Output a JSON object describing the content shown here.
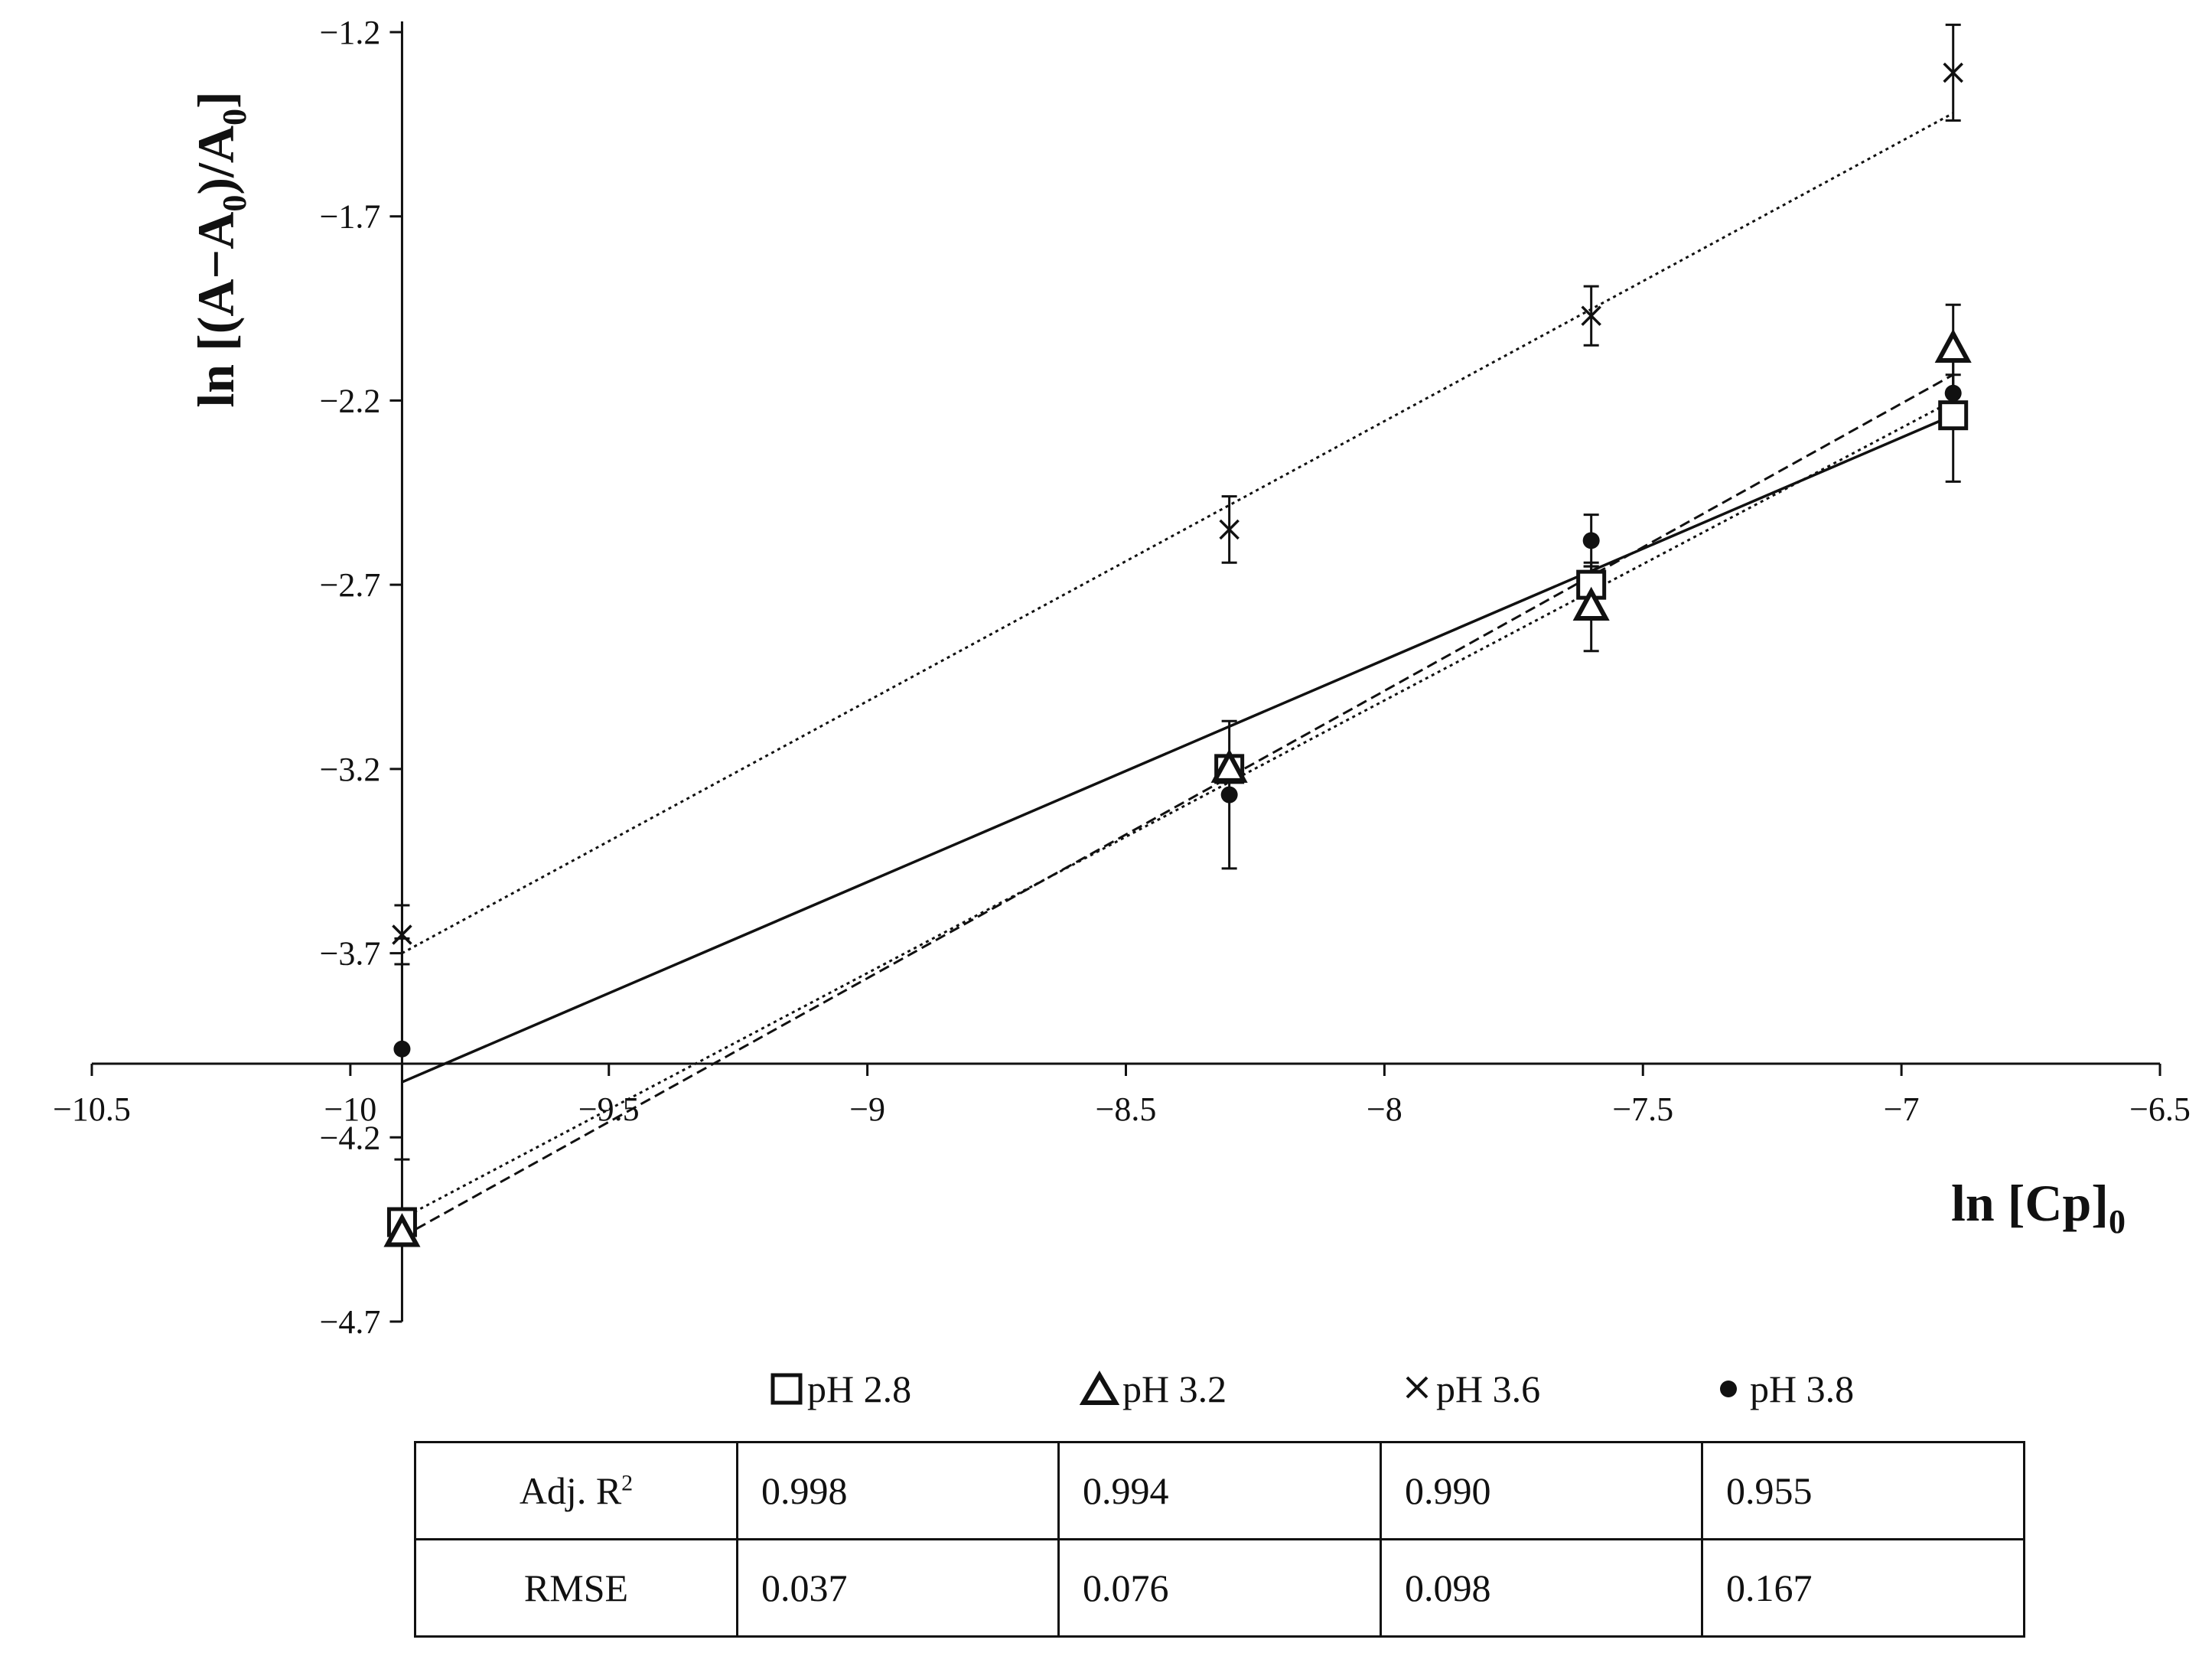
{
  "chart_data": {
    "type": "scatter",
    "xlabel": "ln [Cp]",
    "xlabel_sub": "0",
    "ylabel": {
      "pre": "ln [(A−A",
      "sub1": "0",
      "mid": ")/A",
      "sub2": "0",
      "post": "]"
    },
    "xlim": [
      -10.5,
      -6.5
    ],
    "ylim": [
      -4.7,
      -1.2
    ],
    "x_ticks": [
      -10.5,
      -10,
      -9.5,
      -9,
      -8.5,
      -8,
      -7.5,
      -7,
      -6.5
    ],
    "x_tick_labels": [
      "−10.5",
      "−10",
      "−9.5",
      "−9",
      "−8.5",
      "−8",
      "−7.5",
      "−7",
      "−6.5"
    ],
    "y_ticks": [
      -1.2,
      -1.7,
      -2.2,
      -2.7,
      -3.2,
      -3.7,
      -4.2,
      -4.7
    ],
    "y_tick_labels": [
      "−1.2",
      "−1.7",
      "−2.2",
      "−2.7",
      "−3.2",
      "−3.7",
      "−4.2",
      "−4.7"
    ],
    "axes_cross": {
      "x": -9.9,
      "y": -4.0
    },
    "grid": false,
    "legend_position": "bottom",
    "series": [
      {
        "name": "pH 2.8",
        "marker": "square",
        "line": "solid",
        "x": [
          -9.9,
          -8.3,
          -7.6,
          -6.9
        ],
        "y": [
          -4.43,
          -3.2,
          -2.7,
          -2.24
        ],
        "err": [
          0,
          0.03,
          0.05,
          0.18
        ],
        "fit": {
          "x": [
            -9.9,
            -6.9
          ],
          "y": [
            -4.05,
            -2.24
          ]
        }
      },
      {
        "name": "pH 3.2",
        "marker": "triangle",
        "line": "dashed",
        "x": [
          -9.9,
          -8.3,
          -7.6,
          -6.9
        ],
        "y": [
          -4.46,
          -3.2,
          -2.76,
          -2.06
        ],
        "err": [
          0,
          0.03,
          0.12,
          0.12
        ],
        "fit": {
          "x": [
            -9.9,
            -6.9
          ],
          "y": [
            -4.47,
            -2.13
          ]
        }
      },
      {
        "name": "pH 3.6",
        "marker": "cross",
        "line": "dotted",
        "x": [
          -9.9,
          -8.3,
          -7.6,
          -6.9
        ],
        "y": [
          -3.65,
          -2.55,
          -1.97,
          -1.31
        ],
        "err": [
          0.08,
          0.09,
          0.08,
          0.13
        ],
        "fit": {
          "x": [
            -9.9,
            -6.9
          ],
          "y": [
            -3.7,
            -1.42
          ]
        }
      },
      {
        "name": "pH 3.8",
        "marker": "dot",
        "line": "dotted",
        "x": [
          -9.9,
          -8.3,
          -7.6,
          -6.9
        ],
        "y": [
          -3.96,
          -3.27,
          -2.58,
          -2.18
        ],
        "err": [
          0.3,
          0.2,
          0.07,
          0.05
        ],
        "fit": {
          "x": [
            -9.9,
            -6.9
          ],
          "y": [
            -4.42,
            -2.2
          ]
        }
      }
    ]
  },
  "legend": [
    {
      "label": "pH 2.8",
      "marker": "square"
    },
    {
      "label": "pH 3.2",
      "marker": "triangle"
    },
    {
      "label": "pH 3.6",
      "marker": "cross"
    },
    {
      "label": "pH 3.8",
      "marker": "dot"
    }
  ],
  "table": {
    "rows": [
      {
        "label": "Adj. R",
        "sup": "2",
        "values": [
          "0.998",
          "0.994",
          "0.990",
          "0.955"
        ]
      },
      {
        "label": "RMSE",
        "sup": "",
        "values": [
          "0.037",
          "0.076",
          "0.098",
          "0.167"
        ]
      }
    ]
  }
}
